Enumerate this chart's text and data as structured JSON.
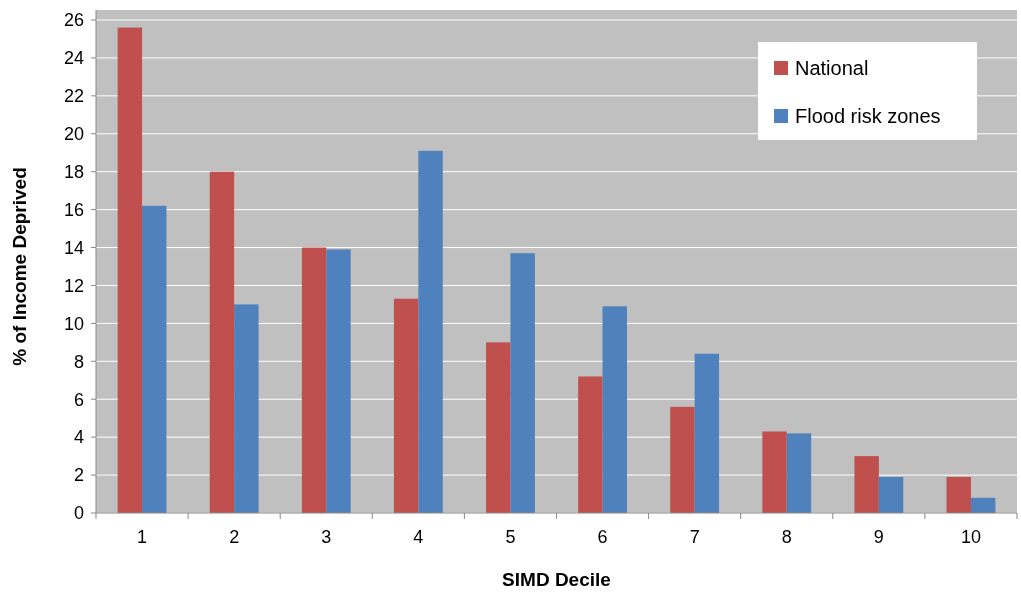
{
  "chart_data": {
    "type": "bar",
    "xlabel": "SIMD Decile",
    "ylabel": "% of Income Deprived",
    "categories": [
      "1",
      "2",
      "3",
      "4",
      "5",
      "6",
      "7",
      "8",
      "9",
      "10"
    ],
    "series": [
      {
        "name": "National",
        "color": "#c0504d",
        "values": [
          25.6,
          18.0,
          14.0,
          11.3,
          9.0,
          7.2,
          5.6,
          4.3,
          3.0,
          1.9
        ]
      },
      {
        "name": "Flood risk zones",
        "color": "#4f81bd",
        "values": [
          16.2,
          11.0,
          13.9,
          19.1,
          13.7,
          10.9,
          8.4,
          4.2,
          1.9,
          0.8
        ]
      }
    ],
    "ylim": [
      0,
      26
    ],
    "yticks": [
      0,
      2,
      4,
      6,
      8,
      10,
      12,
      14,
      16,
      18,
      20,
      22,
      24,
      26
    ],
    "grid": "y",
    "legend": "top right"
  }
}
